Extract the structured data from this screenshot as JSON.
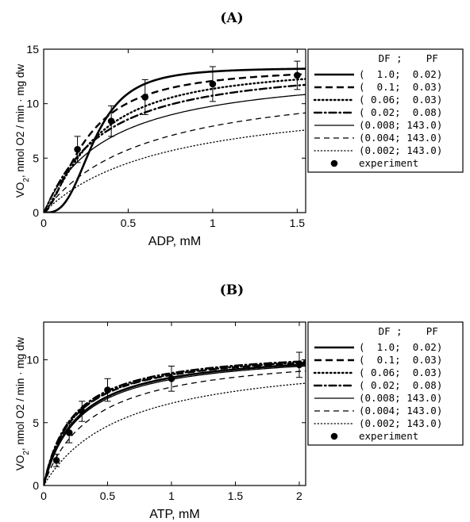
{
  "chart_data": [
    {
      "type": "line",
      "title": "(A)",
      "xlabel": "ADP, mM",
      "ylabel": "VO2, nmol O2 / min · mg dw",
      "xlim": [
        0,
        1.55
      ],
      "ylim": [
        0,
        15
      ],
      "xticks": [
        "0",
        "0.5",
        "1",
        "1.5"
      ],
      "yticks": [
        "0",
        "5",
        "10",
        "15"
      ],
      "grid": false,
      "legend_position": "right-outside",
      "legend_header": "   DF ;    PF",
      "series": [
        {
          "name": "(  1.0;  0.02)",
          "style": "solid-thick",
          "vmax": 13.3,
          "km": 0.3,
          "n": 3
        },
        {
          "name": "(  0.1;  0.03)",
          "style": "dashed-thick",
          "vmax": 13.4,
          "km": 0.25,
          "n": 1.6
        },
        {
          "name": "( 0.06;  0.03)",
          "style": "dotted-thick",
          "vmax": 13.6,
          "km": 0.3,
          "n": 1.35
        },
        {
          "name": "( 0.02;  0.08)",
          "style": "dashdot-thick",
          "vmax": 13.8,
          "km": 0.32,
          "n": 1.1
        },
        {
          "name": "(0.008; 143.0)",
          "style": "solid-thin",
          "vmax": 13.5,
          "km": 0.38,
          "n": 1.0
        },
        {
          "name": "(0.004; 143.0)",
          "style": "dashed-thin",
          "vmax": 12.7,
          "km": 0.6,
          "n": 1.0
        },
        {
          "name": "(0.002; 143.0)",
          "style": "dotted-thin",
          "vmax": 11.1,
          "km": 0.72,
          "n": 1.0
        }
      ],
      "experiment": {
        "name": "experiment",
        "points": [
          {
            "x": 0.2,
            "y": 5.8,
            "err": 1.2
          },
          {
            "x": 0.4,
            "y": 8.4,
            "err": 1.4
          },
          {
            "x": 0.6,
            "y": 10.6,
            "err": 1.6
          },
          {
            "x": 1.0,
            "y": 11.8,
            "err": 1.6
          },
          {
            "x": 1.5,
            "y": 12.6,
            "err": 1.3
          }
        ]
      }
    },
    {
      "type": "line",
      "title": "(B)",
      "xlabel": "ATP, mM",
      "ylabel": "VO2, nmol O2 / min · mg dw",
      "xlim": [
        0,
        2.05
      ],
      "ylim": [
        0,
        13
      ],
      "xticks": [
        "0",
        "0.5",
        "1",
        "1.5",
        "2"
      ],
      "yticks": [
        "0",
        "5",
        "10"
      ],
      "grid": false,
      "legend_position": "right-outside",
      "legend_header": "   DF ;    PF",
      "series": [
        {
          "name": "(  1.0;  0.02)",
          "style": "solid-thick",
          "vmax": 10.9,
          "km": 0.27,
          "n": 1.0
        },
        {
          "name": "(  0.1;  0.03)",
          "style": "dashed-thick",
          "vmax": 10.9,
          "km": 0.24,
          "n": 1.0
        },
        {
          "name": "( 0.06;  0.03)",
          "style": "dotted-thick",
          "vmax": 10.95,
          "km": 0.24,
          "n": 1.0
        },
        {
          "name": "( 0.02;  0.08)",
          "style": "dashdot-thick",
          "vmax": 11.0,
          "km": 0.23,
          "n": 1.0
        },
        {
          "name": "(0.008; 143.0)",
          "style": "solid-thin",
          "vmax": 10.8,
          "km": 0.28,
          "n": 1.0
        },
        {
          "name": "(0.004; 143.0)",
          "style": "dashed-thin",
          "vmax": 10.8,
          "km": 0.38,
          "n": 1.0
        },
        {
          "name": "(0.002; 143.0)",
          "style": "dotted-thin",
          "vmax": 10.6,
          "km": 0.62,
          "n": 1.0
        }
      ],
      "experiment": {
        "name": "experiment",
        "points": [
          {
            "x": 0.1,
            "y": 2.0,
            "err": 0.5
          },
          {
            "x": 0.2,
            "y": 4.2,
            "err": 0.8
          },
          {
            "x": 0.3,
            "y": 5.9,
            "err": 0.8
          },
          {
            "x": 0.5,
            "y": 7.6,
            "err": 0.9
          },
          {
            "x": 1.0,
            "y": 8.5,
            "err": 1.0
          },
          {
            "x": 2.0,
            "y": 9.6,
            "err": 1.0
          }
        ]
      }
    }
  ]
}
